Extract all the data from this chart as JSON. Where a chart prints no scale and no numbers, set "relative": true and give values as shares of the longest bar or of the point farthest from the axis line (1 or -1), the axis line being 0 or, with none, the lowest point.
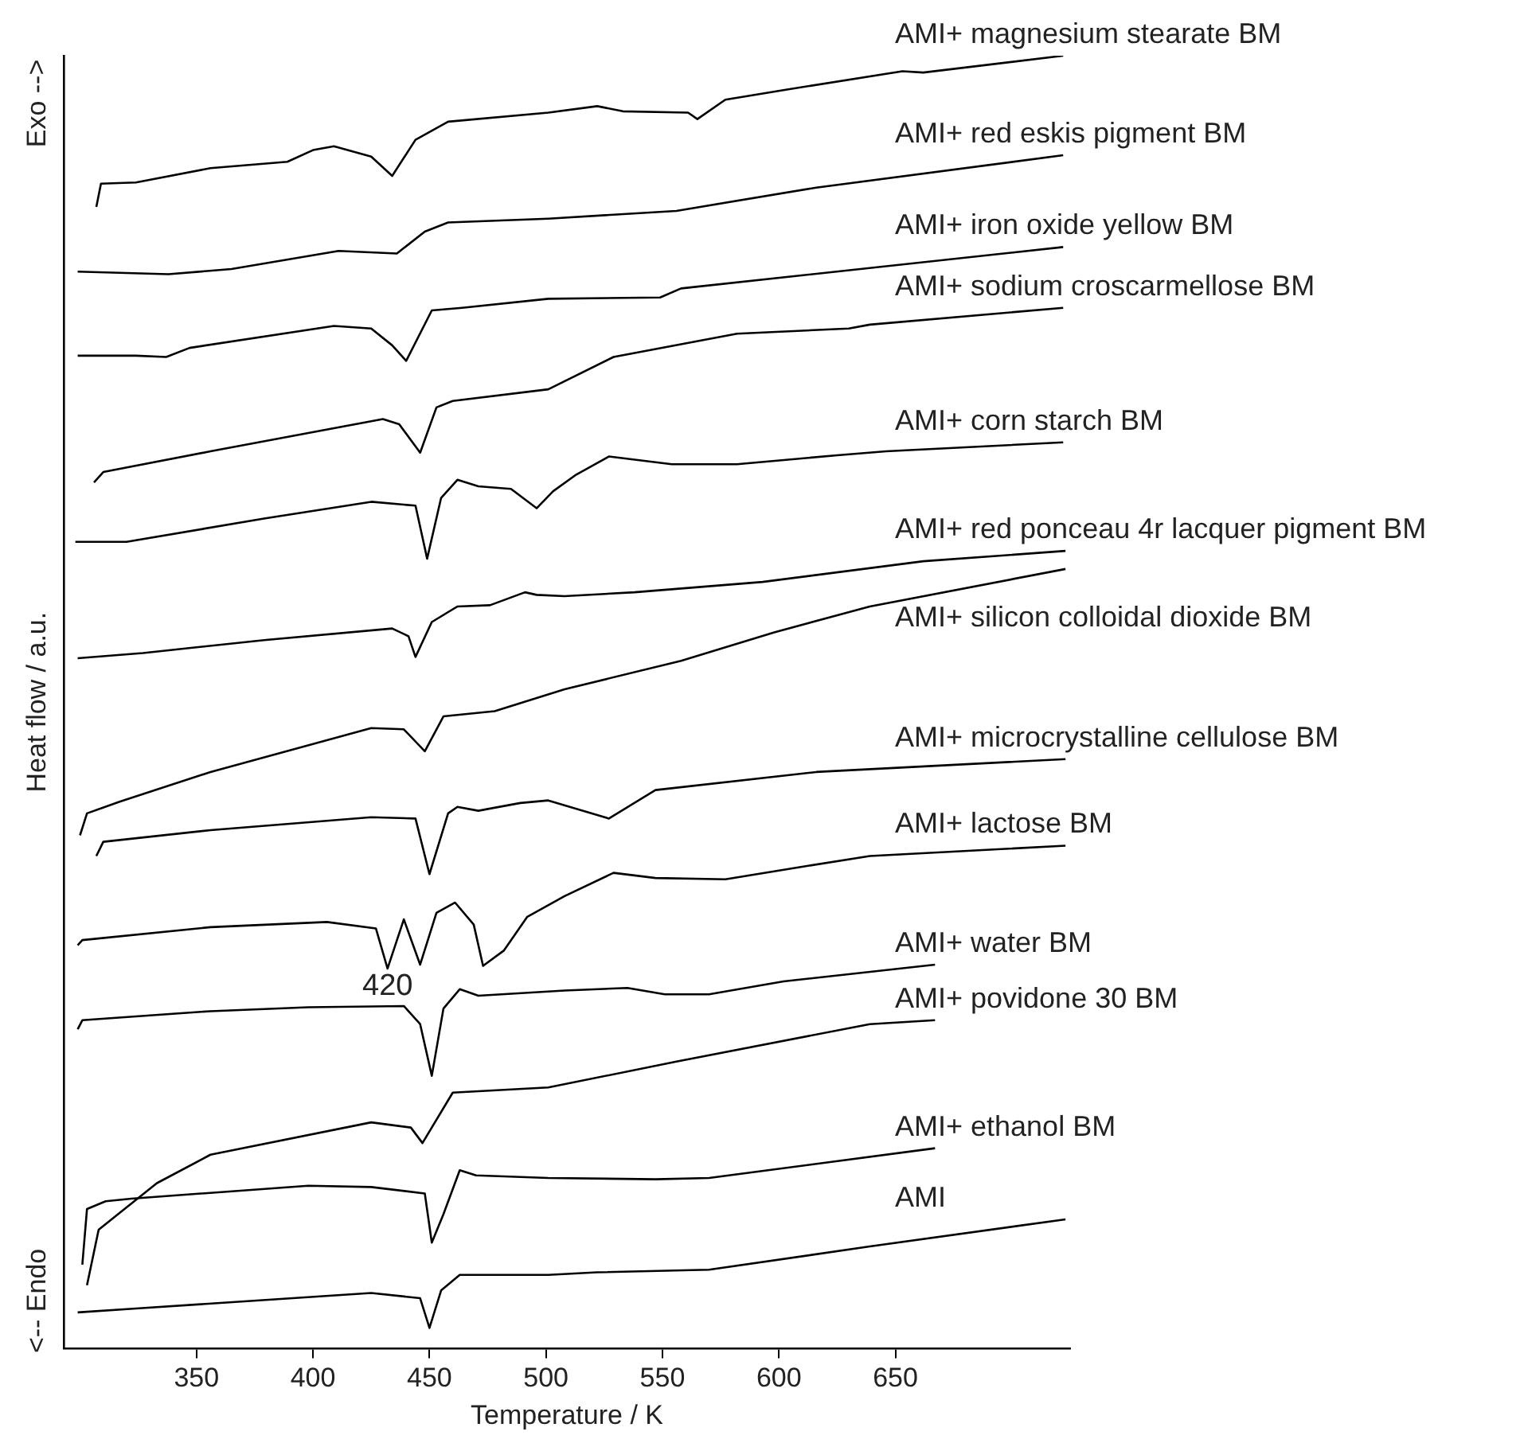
{
  "chart_data": {
    "type": "line",
    "xlabel": "Temperature / K",
    "ylabel": "Heat flow / a.u.",
    "relative": true,
    "tick_labels": "x",
    "xlim": [
      293,
      725
    ],
    "xticks": [
      350,
      400,
      450,
      500,
      550,
      600,
      650
    ],
    "annotations": [
      "Exo -->",
      "<-- Endo",
      {
        "text": "420",
        "x": 432,
        "y": 0.294
      }
    ],
    "series": [
      {
        "name": "AMI+ magnesium stearate BM",
        "color": "#000000",
        "x": [
          307,
          309,
          324,
          356,
          389,
          400,
          409,
          425,
          434,
          444,
          458,
          501,
          522,
          533,
          561,
          565,
          577,
          604,
          653,
          662,
          722
        ],
        "values": [
          0.883,
          0.901,
          0.902,
          0.913,
          0.918,
          0.927,
          0.93,
          0.922,
          0.907,
          0.935,
          0.949,
          0.956,
          0.961,
          0.957,
          0.956,
          0.951,
          0.966,
          0.974,
          0.988,
          0.987,
          1.0
        ]
      },
      {
        "name": "AMI+ red eskis pigment BM",
        "color": "#000000",
        "x": [
          299,
          338,
          365,
          411,
          436,
          448,
          458,
          501,
          556,
          616,
          722
        ],
        "values": [
          0.833,
          0.831,
          0.835,
          0.849,
          0.847,
          0.864,
          0.871,
          0.874,
          0.88,
          0.898,
          0.923
        ]
      },
      {
        "name": "AMI+ iron oxide yellow BM",
        "color": "#000000",
        "x": [
          299,
          324,
          337,
          347,
          409,
          425,
          434,
          440,
          451,
          464,
          501,
          549,
          558,
          722
        ],
        "values": [
          0.768,
          0.768,
          0.767,
          0.774,
          0.791,
          0.789,
          0.776,
          0.764,
          0.803,
          0.805,
          0.812,
          0.813,
          0.82,
          0.852
        ]
      },
      {
        "name": "AMI+ sodium croscarmellose BM",
        "color": "#000000",
        "x": [
          306,
          310,
          356,
          430,
          437,
          446,
          453,
          460,
          501,
          529,
          582,
          630,
          639,
          722
        ],
        "values": [
          0.67,
          0.678,
          0.694,
          0.719,
          0.715,
          0.693,
          0.728,
          0.733,
          0.742,
          0.767,
          0.785,
          0.789,
          0.792,
          0.805
        ]
      },
      {
        "name": "AMI+ corn starch BM",
        "color": "#000000",
        "x": [
          298,
          320,
          379,
          425,
          444,
          449,
          455,
          462,
          471,
          485,
          496,
          503,
          513,
          527,
          554,
          582,
          625,
          646,
          722
        ],
        "values": [
          0.624,
          0.624,
          0.642,
          0.655,
          0.652,
          0.611,
          0.658,
          0.672,
          0.667,
          0.665,
          0.65,
          0.663,
          0.676,
          0.69,
          0.684,
          0.684,
          0.691,
          0.694,
          0.701
        ]
      },
      {
        "name": "AMI+ red ponceau 4r lacquer pigment BM",
        "color": "#000000",
        "x": [
          299,
          327,
          379,
          434,
          441,
          444,
          451,
          462,
          476,
          491,
          496,
          508,
          538,
          593,
          662,
          723
        ],
        "values": [
          0.534,
          0.538,
          0.548,
          0.557,
          0.551,
          0.535,
          0.562,
          0.574,
          0.575,
          0.585,
          0.583,
          0.582,
          0.585,
          0.593,
          0.609,
          0.617
        ]
      },
      {
        "name": "AMI+ silicon colloidal dioxide BM",
        "color": "#000000",
        "x": [
          300,
          303,
          317,
          356,
          425,
          439,
          448,
          456,
          478,
          508,
          558,
          598,
          639,
          723
        ],
        "values": [
          0.397,
          0.414,
          0.423,
          0.446,
          0.48,
          0.479,
          0.462,
          0.489,
          0.493,
          0.51,
          0.532,
          0.554,
          0.574,
          0.603
        ]
      },
      {
        "name": "AMI+ microcrystalline cellulose BM",
        "color": "#000000",
        "x": [
          307,
          310,
          356,
          425,
          444,
          450,
          458,
          462,
          471,
          489,
          501,
          527,
          547,
          616,
          723
        ],
        "values": [
          0.381,
          0.392,
          0.401,
          0.411,
          0.41,
          0.367,
          0.414,
          0.419,
          0.416,
          0.422,
          0.424,
          0.41,
          0.432,
          0.446,
          0.456
        ]
      },
      {
        "name": "AMI+ lactose BM",
        "color": "#000000",
        "x": [
          299,
          301,
          356,
          406,
          427,
          432,
          439,
          446,
          453,
          461,
          469,
          473,
          482,
          492,
          508,
          529,
          547,
          577,
          611,
          639,
          723
        ],
        "values": [
          0.312,
          0.316,
          0.326,
          0.33,
          0.325,
          0.294,
          0.332,
          0.297,
          0.337,
          0.345,
          0.328,
          0.296,
          0.308,
          0.334,
          0.35,
          0.368,
          0.364,
          0.363,
          0.373,
          0.381,
          0.389
        ]
      },
      {
        "name": "AMI+ water BM",
        "color": "#000000",
        "x": [
          299,
          301,
          356,
          398,
          439,
          446,
          451,
          456,
          463,
          471,
          508,
          535,
          551,
          570,
          602,
          667
        ],
        "values": [
          0.247,
          0.254,
          0.261,
          0.264,
          0.265,
          0.251,
          0.211,
          0.263,
          0.278,
          0.273,
          0.277,
          0.279,
          0.274,
          0.274,
          0.284,
          0.297
        ]
      },
      {
        "name": "AMI+ povidone 30 BM",
        "color": "#000000",
        "x": [
          303,
          308,
          333,
          356,
          425,
          442,
          447,
          460,
          501,
          556,
          639,
          667
        ],
        "values": [
          0.049,
          0.092,
          0.128,
          0.15,
          0.175,
          0.171,
          0.159,
          0.198,
          0.202,
          0.222,
          0.251,
          0.254
        ]
      },
      {
        "name": "AMI+ ethanol BM",
        "color": "#000000",
        "x": [
          301,
          303,
          311,
          322,
          398,
          425,
          448,
          451,
          456,
          463,
          470,
          501,
          547,
          570,
          667
        ],
        "values": [
          0.065,
          0.108,
          0.114,
          0.116,
          0.126,
          0.125,
          0.12,
          0.082,
          0.104,
          0.138,
          0.134,
          0.132,
          0.131,
          0.132,
          0.155
        ]
      },
      {
        "name": "AMI",
        "color": "#000000",
        "x": [
          299,
          324,
          425,
          446,
          450,
          455,
          463,
          501,
          522,
          570,
          639,
          723
        ],
        "values": [
          0.028,
          0.031,
          0.043,
          0.039,
          0.016,
          0.045,
          0.057,
          0.057,
          0.059,
          0.061,
          0.079,
          0.1
        ]
      }
    ]
  }
}
